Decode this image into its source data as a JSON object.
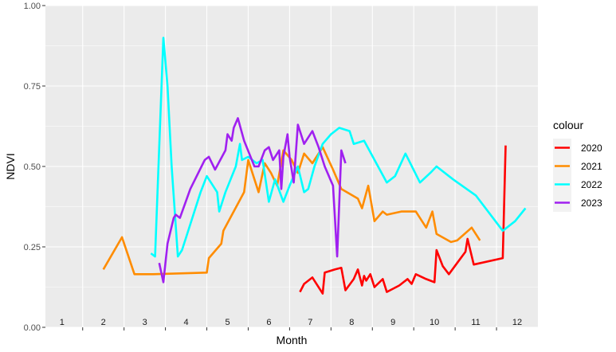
{
  "chart_data": {
    "type": "line",
    "xlabel": "Month",
    "ylabel": "NDVI",
    "xlim": [
      0.6,
      12.5
    ],
    "ylim": [
      0,
      1
    ],
    "x_ticks": [
      "1",
      "2",
      "3",
      "4",
      "5",
      "6",
      "7",
      "8",
      "9",
      "10",
      "11",
      "12"
    ],
    "y_ticks": [
      "0.00",
      "0.25",
      "0.50",
      "0.75",
      "1.00"
    ],
    "y_tick_values": [
      0,
      0.25,
      0.5,
      0.75,
      1.0
    ],
    "grid": true,
    "legend_title": "colour",
    "legend_position": "right",
    "series": [
      {
        "name": "2020",
        "color": "#ff0000",
        "points": [
          [
            6.75,
            0.11
          ],
          [
            6.85,
            0.135
          ],
          [
            7.05,
            0.155
          ],
          [
            7.3,
            0.105
          ],
          [
            7.35,
            0.17
          ],
          [
            7.6,
            0.18
          ],
          [
            7.75,
            0.185
          ],
          [
            7.85,
            0.115
          ],
          [
            8.05,
            0.15
          ],
          [
            8.15,
            0.18
          ],
          [
            8.25,
            0.13
          ],
          [
            8.3,
            0.16
          ],
          [
            8.35,
            0.145
          ],
          [
            8.45,
            0.165
          ],
          [
            8.55,
            0.125
          ],
          [
            8.75,
            0.15
          ],
          [
            8.85,
            0.11
          ],
          [
            9.15,
            0.13
          ],
          [
            9.35,
            0.15
          ],
          [
            9.45,
            0.135
          ],
          [
            9.55,
            0.165
          ],
          [
            9.8,
            0.15
          ],
          [
            10.0,
            0.14
          ],
          [
            10.05,
            0.24
          ],
          [
            10.2,
            0.19
          ],
          [
            10.35,
            0.165
          ],
          [
            10.55,
            0.2
          ],
          [
            10.75,
            0.235
          ],
          [
            10.8,
            0.275
          ],
          [
            10.95,
            0.195
          ],
          [
            11.65,
            0.215
          ],
          [
            11.72,
            0.565
          ]
        ]
      },
      {
        "name": "2021",
        "color": "#ff8c00",
        "points": [
          [
            2.0,
            0.18
          ],
          [
            2.45,
            0.28
          ],
          [
            2.75,
            0.165
          ],
          [
            3.2,
            0.165
          ],
          [
            4.5,
            0.17
          ],
          [
            4.55,
            0.215
          ],
          [
            4.85,
            0.26
          ],
          [
            4.9,
            0.3
          ],
          [
            5.4,
            0.42
          ],
          [
            5.5,
            0.52
          ],
          [
            5.65,
            0.46
          ],
          [
            5.75,
            0.42
          ],
          [
            5.9,
            0.51
          ],
          [
            6.05,
            0.48
          ],
          [
            6.2,
            0.44
          ],
          [
            6.35,
            0.55
          ],
          [
            6.55,
            0.52
          ],
          [
            6.7,
            0.48
          ],
          [
            6.85,
            0.54
          ],
          [
            7.05,
            0.51
          ],
          [
            7.3,
            0.56
          ],
          [
            7.55,
            0.49
          ],
          [
            7.75,
            0.43
          ],
          [
            8.15,
            0.4
          ],
          [
            8.25,
            0.37
          ],
          [
            8.4,
            0.44
          ],
          [
            8.55,
            0.33
          ],
          [
            8.75,
            0.36
          ],
          [
            8.85,
            0.35
          ],
          [
            9.2,
            0.36
          ],
          [
            9.55,
            0.36
          ],
          [
            9.8,
            0.31
          ],
          [
            9.95,
            0.36
          ],
          [
            10.05,
            0.29
          ],
          [
            10.4,
            0.265
          ],
          [
            10.55,
            0.27
          ],
          [
            10.9,
            0.31
          ],
          [
            11.1,
            0.27
          ]
        ]
      },
      {
        "name": "2022",
        "color": "#00ffff",
        "points": [
          [
            3.15,
            0.23
          ],
          [
            3.25,
            0.22
          ],
          [
            3.45,
            0.9
          ],
          [
            3.55,
            0.75
          ],
          [
            3.65,
            0.5
          ],
          [
            3.8,
            0.22
          ],
          [
            3.9,
            0.24
          ],
          [
            4.0,
            0.28
          ],
          [
            4.35,
            0.42
          ],
          [
            4.5,
            0.47
          ],
          [
            4.75,
            0.42
          ],
          [
            4.8,
            0.36
          ],
          [
            4.95,
            0.42
          ],
          [
            5.2,
            0.5
          ],
          [
            5.3,
            0.57
          ],
          [
            5.35,
            0.52
          ],
          [
            5.5,
            0.53
          ],
          [
            5.7,
            0.51
          ],
          [
            5.85,
            0.52
          ],
          [
            6.0,
            0.39
          ],
          [
            6.15,
            0.46
          ],
          [
            6.35,
            0.39
          ],
          [
            6.5,
            0.44
          ],
          [
            6.7,
            0.5
          ],
          [
            6.85,
            0.42
          ],
          [
            6.95,
            0.43
          ],
          [
            7.1,
            0.5
          ],
          [
            7.3,
            0.57
          ],
          [
            7.5,
            0.6
          ],
          [
            7.7,
            0.62
          ],
          [
            7.95,
            0.61
          ],
          [
            8.05,
            0.57
          ],
          [
            8.3,
            0.58
          ],
          [
            8.85,
            0.45
          ],
          [
            9.05,
            0.47
          ],
          [
            9.3,
            0.54
          ],
          [
            9.65,
            0.45
          ],
          [
            9.9,
            0.48
          ],
          [
            10.05,
            0.5
          ],
          [
            10.45,
            0.46
          ],
          [
            11.0,
            0.41
          ],
          [
            11.65,
            0.3
          ],
          [
            11.95,
            0.33
          ],
          [
            12.2,
            0.37
          ]
        ]
      },
      {
        "name": "2023",
        "color": "#a020f0",
        "points": [
          [
            3.35,
            0.2
          ],
          [
            3.45,
            0.14
          ],
          [
            3.55,
            0.26
          ],
          [
            3.7,
            0.34
          ],
          [
            3.75,
            0.35
          ],
          [
            3.85,
            0.34
          ],
          [
            4.1,
            0.43
          ],
          [
            4.45,
            0.52
          ],
          [
            4.55,
            0.53
          ],
          [
            4.7,
            0.49
          ],
          [
            4.95,
            0.55
          ],
          [
            5.0,
            0.6
          ],
          [
            5.1,
            0.58
          ],
          [
            5.15,
            0.62
          ],
          [
            5.25,
            0.65
          ],
          [
            5.4,
            0.58
          ],
          [
            5.65,
            0.5
          ],
          [
            5.75,
            0.5
          ],
          [
            5.9,
            0.55
          ],
          [
            6.0,
            0.56
          ],
          [
            6.1,
            0.52
          ],
          [
            6.25,
            0.55
          ],
          [
            6.3,
            0.43
          ],
          [
            6.35,
            0.53
          ],
          [
            6.45,
            0.6
          ],
          [
            6.5,
            0.53
          ],
          [
            6.6,
            0.45
          ],
          [
            6.7,
            0.63
          ],
          [
            6.85,
            0.57
          ],
          [
            7.05,
            0.61
          ],
          [
            7.2,
            0.56
          ],
          [
            7.35,
            0.5
          ],
          [
            7.55,
            0.44
          ],
          [
            7.65,
            0.22
          ],
          [
            7.75,
            0.55
          ],
          [
            7.85,
            0.51
          ]
        ]
      }
    ]
  }
}
